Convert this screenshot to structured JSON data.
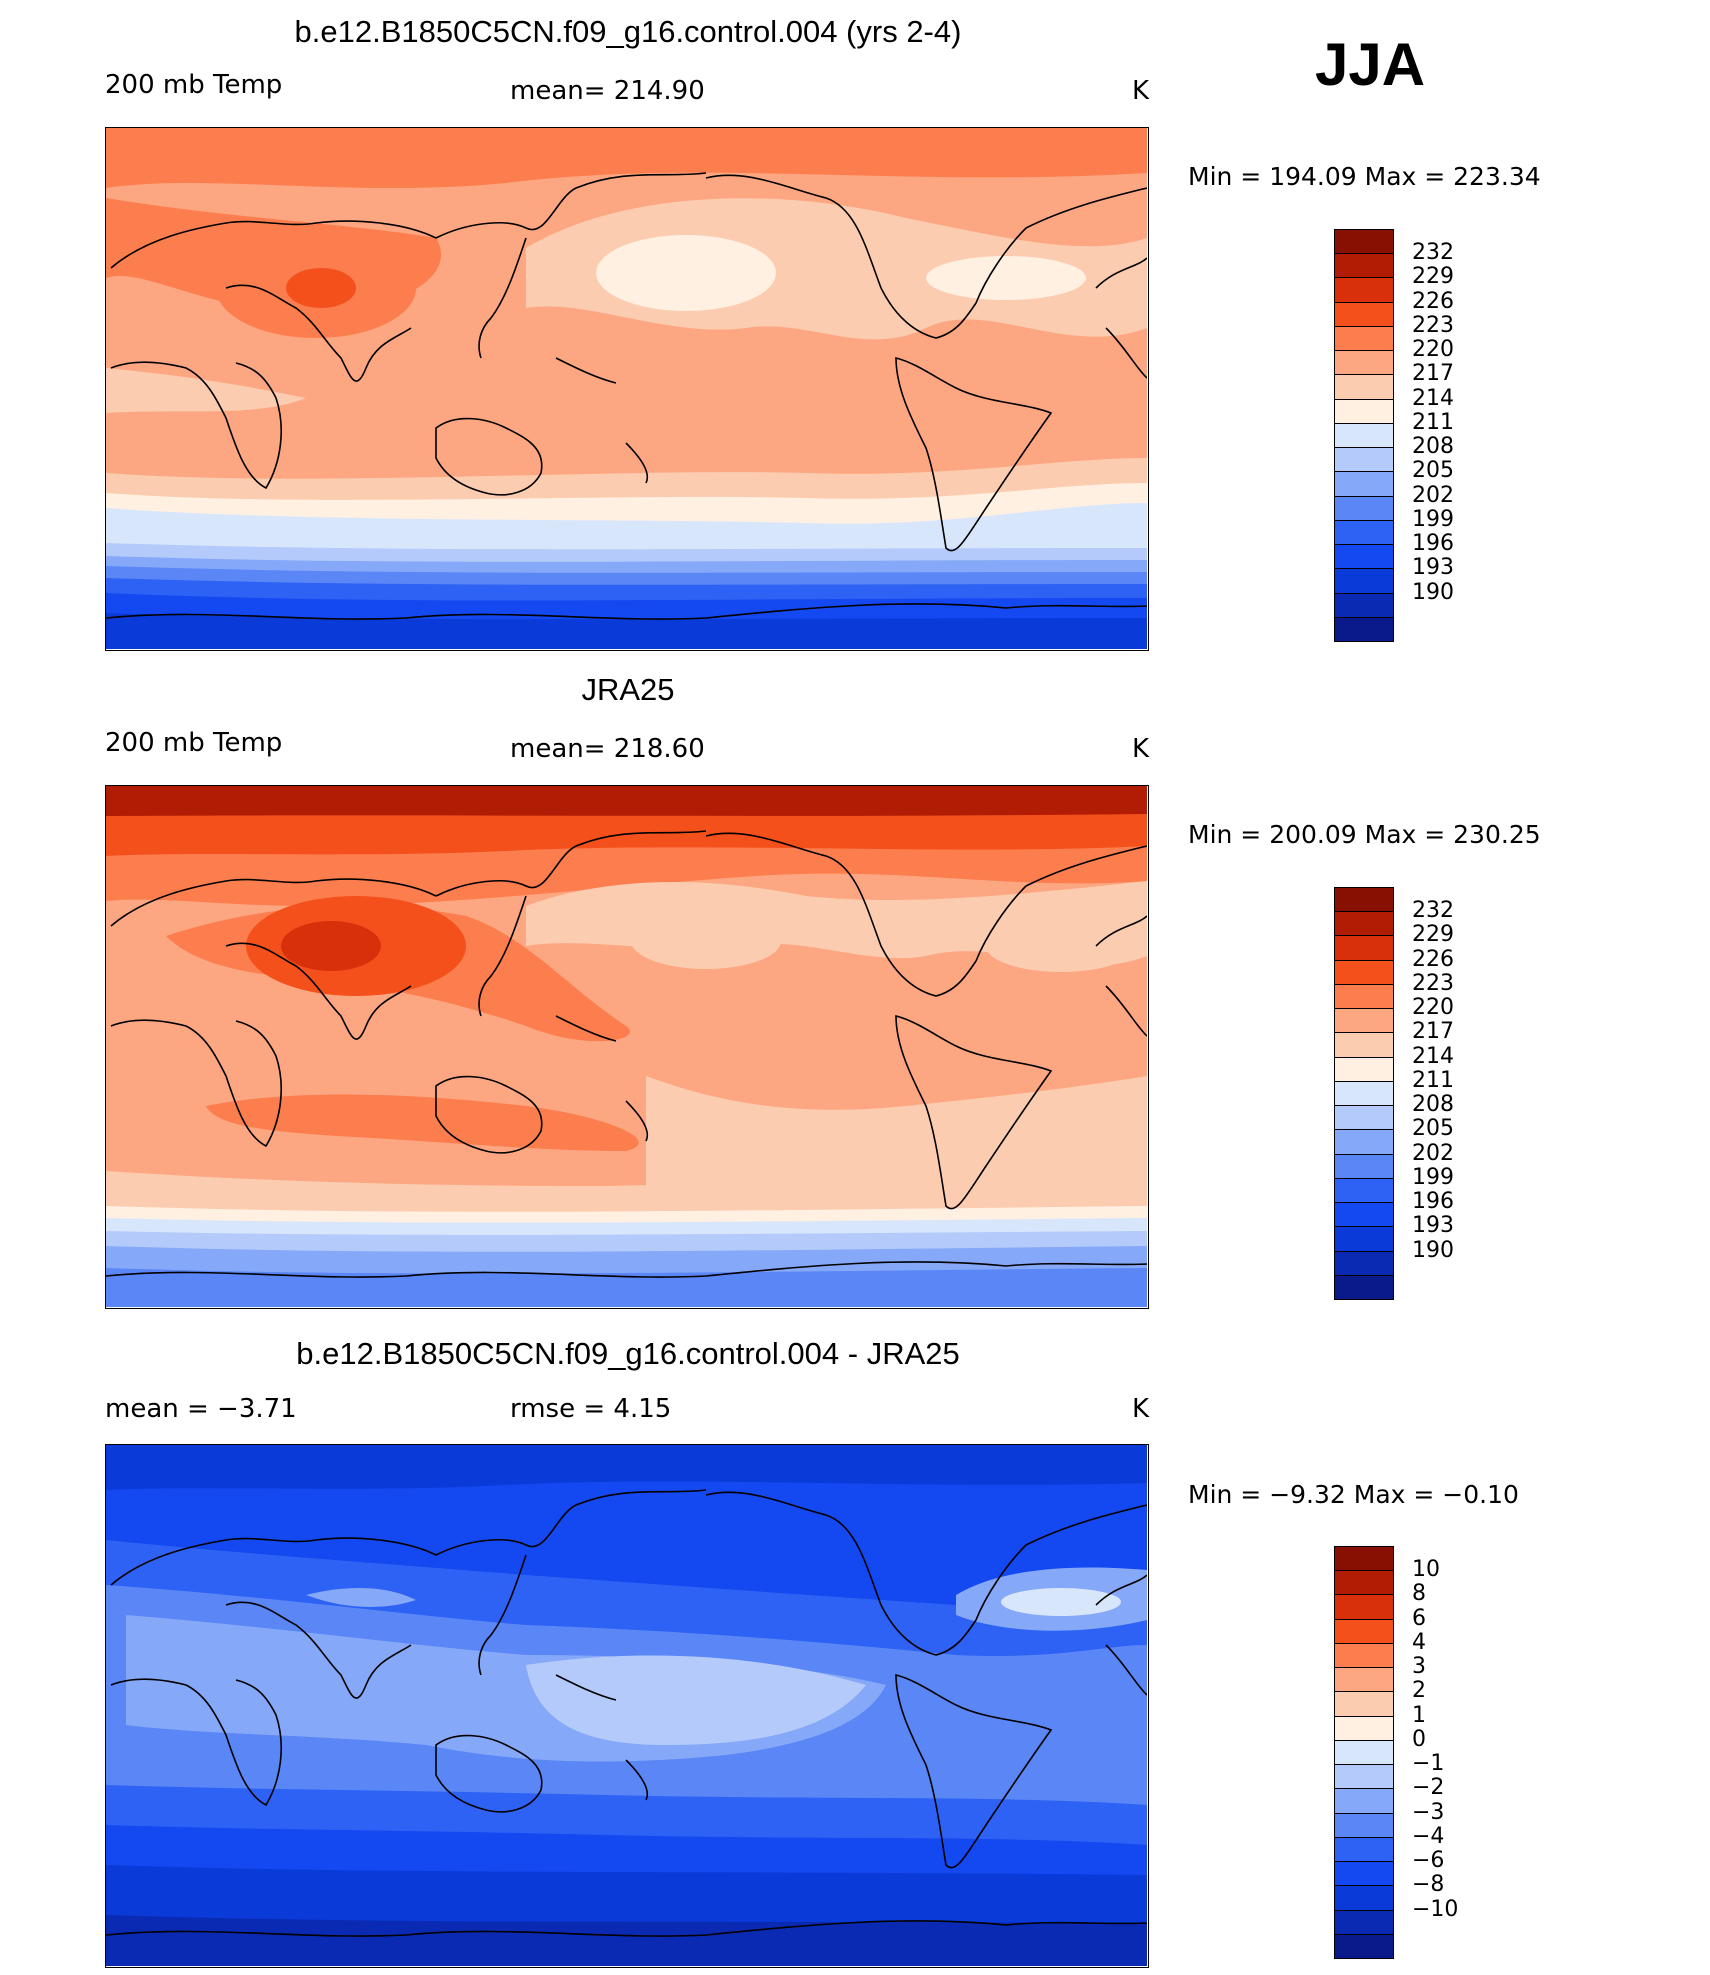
{
  "season": "JJA",
  "colors": {
    "temp_scale": [
      "#0a1a8a",
      "#0a2ab4",
      "#0a3ad8",
      "#1448f0",
      "#2e62f4",
      "#5a86f6",
      "#86a8f8",
      "#b4cafa",
      "#d8e6fc",
      "#fff0e2",
      "#fcccb0",
      "#fca782",
      "#fc7e4e",
      "#f4501c",
      "#d8300a",
      "#b01c04",
      "#881002"
    ],
    "diff_scale": [
      "#0a1a8a",
      "#0a2ab4",
      "#0a3ad8",
      "#1448f0",
      "#2e62f4",
      "#5a86f6",
      "#86a8f8",
      "#b4cafa",
      "#d8e6fc",
      "#fff0e2",
      "#fcccb0",
      "#fca782",
      "#fc7e4e",
      "#f4501c",
      "#d8300a",
      "#b01c04",
      "#881002"
    ]
  },
  "panels": [
    {
      "title": "b.e12.B1850C5CN.f09_g16.control.004 (yrs 2-4)",
      "left_label": "200 mb Temp",
      "center_label": "mean= 214.90",
      "units": "K",
      "minmax": "Min  =  194.09  Max  =  223.34",
      "colorbar_ticks": [
        "232",
        "229",
        "226",
        "223",
        "220",
        "217",
        "214",
        "211",
        "208",
        "205",
        "202",
        "199",
        "196",
        "193",
        "190"
      ]
    },
    {
      "title": "JRA25",
      "left_label": "200 mb Temp",
      "center_label": "mean= 218.60",
      "units": "K",
      "minmax": "Min  =  200.09  Max  =  230.25",
      "colorbar_ticks": [
        "232",
        "229",
        "226",
        "223",
        "220",
        "217",
        "214",
        "211",
        "208",
        "205",
        "202",
        "199",
        "196",
        "193",
        "190"
      ]
    },
    {
      "title": "b.e12.B1850C5CN.f09_g16.control.004 - JRA25",
      "left_label": "mean  =    −3.71",
      "center_label": "rmse  =     4.15",
      "units": "K",
      "minmax": "Min  =    −9.32  Max  =    −0.10",
      "colorbar_ticks": [
        "10",
        "8",
        "6",
        "4",
        "3",
        "2",
        "1",
        "0",
        "−1",
        "−2",
        "−3",
        "−4",
        "−6",
        "−8",
        "−10"
      ]
    }
  ],
  "chart_data": [
    {
      "type": "heatmap",
      "title": "b.e12.B1850C5CN.f09_g16.control.004 (yrs 2-4)",
      "variable": "200 mb Temp",
      "units": "K",
      "mean": 214.9,
      "min": 194.09,
      "max": 223.34,
      "contour_levels": [
        190,
        193,
        196,
        199,
        202,
        205,
        208,
        211,
        214,
        217,
        220,
        223,
        226,
        229,
        232
      ],
      "season": "JJA"
    },
    {
      "type": "heatmap",
      "title": "JRA25",
      "variable": "200 mb Temp",
      "units": "K",
      "mean": 218.6,
      "min": 200.09,
      "max": 230.25,
      "contour_levels": [
        190,
        193,
        196,
        199,
        202,
        205,
        208,
        211,
        214,
        217,
        220,
        223,
        226,
        229,
        232
      ],
      "season": "JJA"
    },
    {
      "type": "heatmap",
      "title": "b.e12.B1850C5CN.f09_g16.control.004 - JRA25",
      "units": "K",
      "mean": -3.71,
      "rmse": 4.15,
      "min": -9.32,
      "max": -0.1,
      "contour_levels": [
        -10,
        -8,
        -6,
        -4,
        -3,
        -2,
        -1,
        0,
        1,
        2,
        3,
        4,
        6,
        8,
        10
      ],
      "season": "JJA"
    }
  ]
}
